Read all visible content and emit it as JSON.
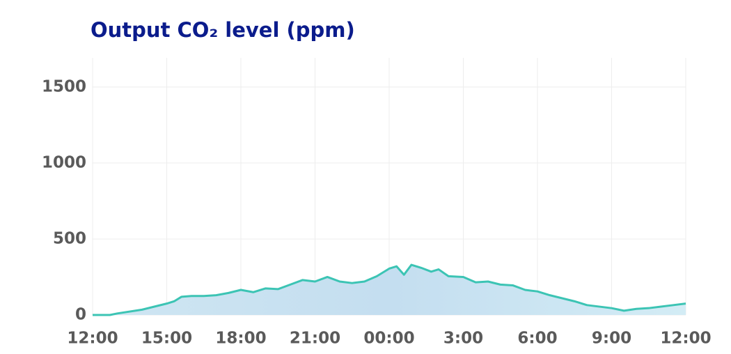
{
  "chart_data": {
    "type": "area",
    "title": "Output CO₂ level (ppm)",
    "x": [
      0,
      0.7,
      1,
      2,
      3,
      3.3,
      3.6,
      4,
      4.5,
      5,
      5.5,
      6,
      6.5,
      7,
      7.5,
      8,
      8.5,
      9,
      9.5,
      10,
      10.5,
      11,
      11.5,
      12,
      12.3,
      12.6,
      12.9,
      13.3,
      13.7,
      14,
      14.4,
      15,
      15.5,
      16,
      16.5,
      17,
      17.5,
      18,
      18.5,
      19,
      19.5,
      20,
      21,
      21.5,
      22,
      22.5,
      23,
      23.5,
      24
    ],
    "series": [
      {
        "name": "CO2",
        "color": "#3cc4b4",
        "values": [
          0,
          0,
          10,
          35,
          75,
          90,
          120,
          125,
          125,
          130,
          145,
          165,
          150,
          175,
          170,
          200,
          230,
          220,
          250,
          220,
          210,
          220,
          255,
          305,
          320,
          265,
          330,
          310,
          285,
          300,
          255,
          250,
          215,
          220,
          200,
          195,
          165,
          155,
          130,
          110,
          90,
          65,
          45,
          28,
          40,
          45,
          55,
          65,
          75
        ]
      }
    ],
    "xlim": [
      0,
      24
    ],
    "xticks": [
      {
        "value": 0,
        "label": "12:00"
      },
      {
        "value": 3,
        "label": "15:00"
      },
      {
        "value": 6,
        "label": "18:00"
      },
      {
        "value": 9,
        "label": "21:00"
      },
      {
        "value": 12,
        "label": "00:00"
      },
      {
        "value": 15,
        "label": "3:00"
      },
      {
        "value": 18,
        "label": "6:00"
      },
      {
        "value": 21,
        "label": "9:00"
      },
      {
        "value": 24,
        "label": "12:00"
      }
    ],
    "ylim": [
      0,
      1600
    ],
    "yticks": [
      0,
      500,
      1000,
      1500
    ],
    "grid": true
  }
}
